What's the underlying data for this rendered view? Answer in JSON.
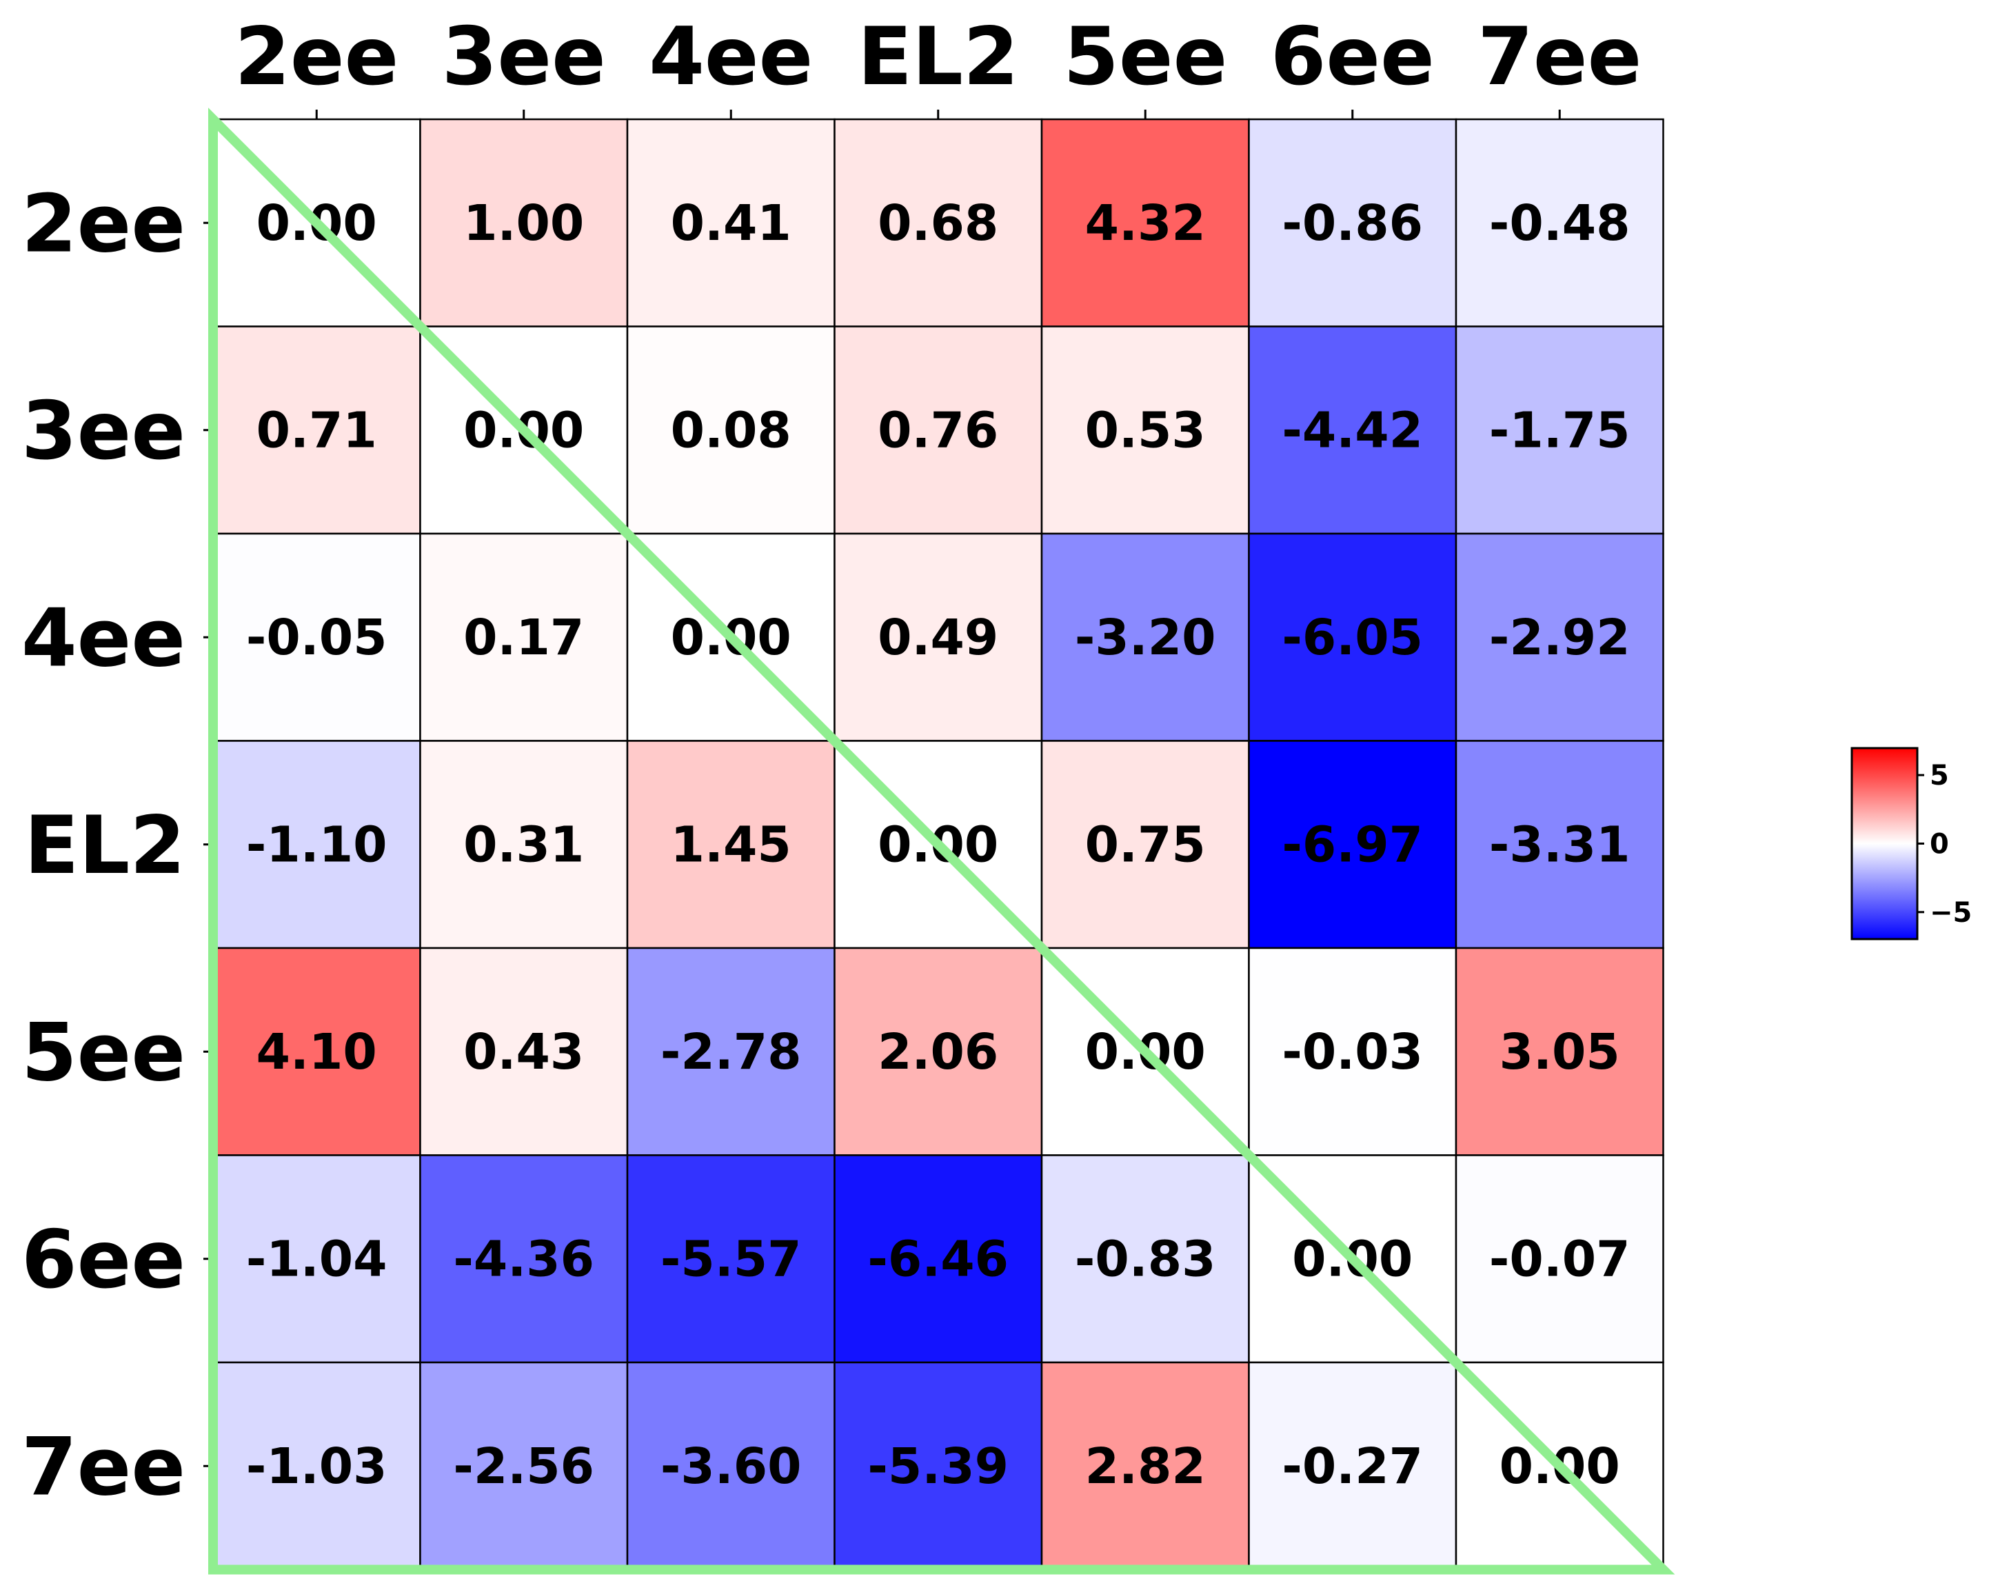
{
  "chart_data": {
    "type": "heatmap",
    "x_labels": [
      "2ee",
      "3ee",
      "4ee",
      "EL2",
      "5ee",
      "6ee",
      "7ee"
    ],
    "y_labels": [
      "2ee",
      "3ee",
      "4ee",
      "EL2",
      "5ee",
      "6ee",
      "7ee"
    ],
    "values": [
      [
        0.0,
        1.0,
        0.41,
        0.68,
        4.32,
        -0.86,
        -0.48
      ],
      [
        0.71,
        0.0,
        0.08,
        0.76,
        0.53,
        -4.42,
        -1.75
      ],
      [
        -0.05,
        0.17,
        0.0,
        0.49,
        -3.2,
        -6.05,
        -2.92
      ],
      [
        -1.1,
        0.31,
        1.45,
        0.0,
        0.75,
        -6.97,
        -3.31
      ],
      [
        4.1,
        0.43,
        -2.78,
        2.06,
        0.0,
        -0.03,
        3.05
      ],
      [
        -1.04,
        -4.36,
        -5.57,
        -6.46,
        -0.83,
        0.0,
        -0.07
      ],
      [
        -1.03,
        -2.56,
        -3.6,
        -5.39,
        2.82,
        -0.27,
        0.0
      ]
    ],
    "value_labels": [
      [
        "0.00",
        "1.00",
        "0.41",
        "0.68",
        "4.32",
        "-0.86",
        "-0.48"
      ],
      [
        "0.71",
        "0.00",
        "0.08",
        "0.76",
        "0.53",
        "-4.42",
        "-1.75"
      ],
      [
        "-0.05",
        "0.17",
        "0.00",
        "0.49",
        "-3.20",
        "-6.05",
        "-2.92"
      ],
      [
        "-1.10",
        "0.31",
        "1.45",
        "0.00",
        "0.75",
        "-6.97",
        "-3.31"
      ],
      [
        "4.10",
        "0.43",
        "-2.78",
        "2.06",
        "0.00",
        "-0.03",
        "3.05"
      ],
      [
        "-1.04",
        "-4.36",
        "-5.57",
        "-6.46",
        "-0.83",
        "0.00",
        "-0.07"
      ],
      [
        "-1.03",
        "-2.56",
        "-3.60",
        "-5.39",
        "2.82",
        "-0.27",
        "0.00"
      ]
    ],
    "x_axis_position": "top",
    "colormap": "bwr",
    "color_range": [
      -6.97,
      6.97
    ],
    "colorbar": {
      "ticks": [
        5,
        0,
        -5
      ],
      "tick_labels": [
        "5",
        "0",
        "−5"
      ],
      "placement": "right"
    },
    "overlay": {
      "shape": "lower-left triangle",
      "color": "#90ee90"
    },
    "colors": {
      "negative": "#0000ff",
      "zero": "#ffffff",
      "positive": "#ff0000",
      "grid": "#000000"
    }
  }
}
